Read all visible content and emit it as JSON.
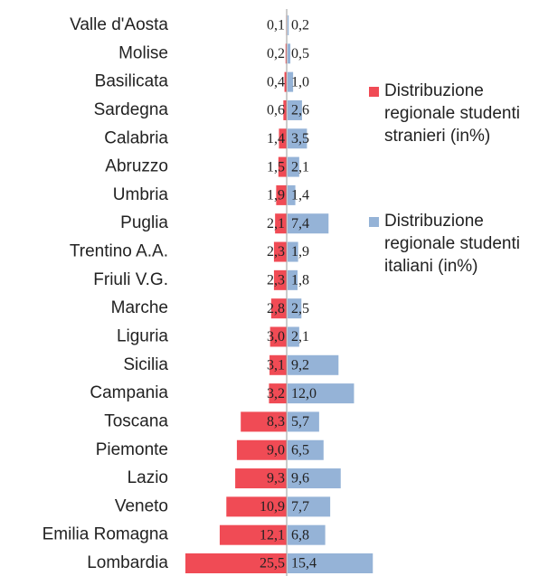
{
  "chart_data": {
    "type": "bar",
    "categories": [
      "Valle d'Aosta",
      "Molise",
      "Basilicata",
      "Sardegna",
      "Calabria",
      "Abruzzo",
      "Umbria",
      "Puglia",
      "Trentino A.A.",
      "Friuli V.G.",
      "Marche",
      "Liguria",
      "Sicilia",
      "Campania",
      "Toscana",
      "Piemonte",
      "Lazio",
      "Veneto",
      "Emilia Romagna",
      "Lombardia"
    ],
    "series": [
      {
        "name": "Distribuzione regionale studenti stranieri (in%)",
        "color": "#f04b55",
        "values": [
          0.1,
          0.2,
          0.4,
          0.6,
          1.4,
          1.5,
          1.9,
          2.1,
          2.3,
          2.3,
          2.8,
          3.0,
          3.1,
          3.2,
          8.3,
          9.0,
          9.3,
          10.9,
          12.1,
          25.5
        ],
        "value_labels": [
          "0,1",
          "0,2",
          "0,4",
          "0,6",
          "1,4",
          "1,5",
          "1,9",
          "2,1",
          "2,3",
          "2,3",
          "2,8",
          "3,0",
          "3,1",
          "3,2",
          "8,3",
          "9,0",
          "9,3",
          "10,9",
          "12,1",
          "25,5"
        ]
      },
      {
        "name": "Distribuzione regionale studenti italiani (in%)",
        "color": "#95b3d7",
        "values": [
          0.2,
          0.5,
          1.0,
          2.6,
          3.5,
          2.1,
          1.4,
          7.4,
          1.9,
          1.8,
          2.5,
          2.1,
          9.2,
          12.0,
          5.7,
          6.5,
          9.6,
          7.7,
          6.8,
          15.4
        ],
        "value_labels": [
          "0,2",
          "0,5",
          "1,0",
          "2,6",
          "3,5",
          "2,1",
          "1,4",
          "7,4",
          "1,9",
          "1,8",
          "2,5",
          "2,1",
          "9,2",
          "12,0",
          "5,7",
          "6,5",
          "9,6",
          "7,7",
          "6,8",
          "15,4"
        ]
      }
    ]
  }
}
